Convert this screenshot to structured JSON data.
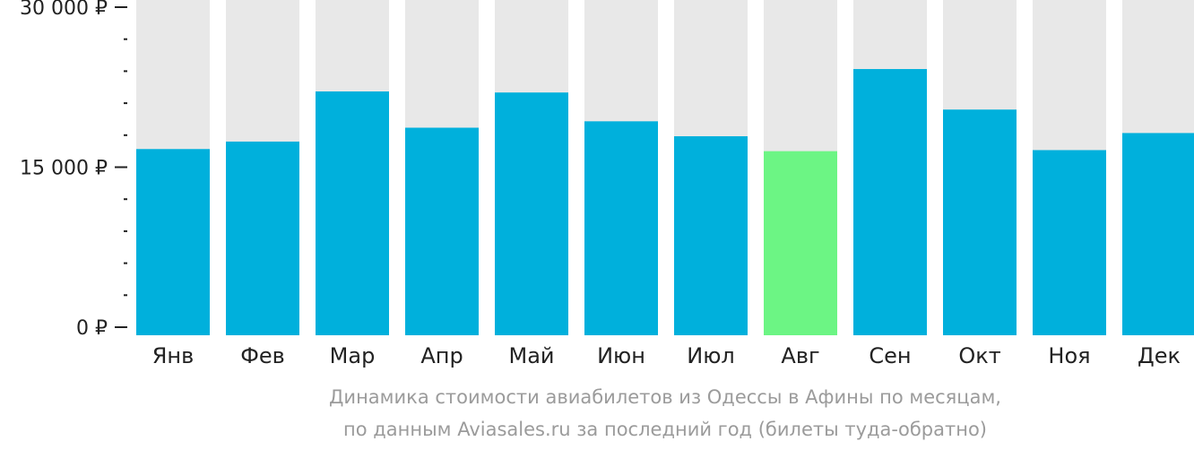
{
  "chart_data": {
    "type": "bar",
    "categories": [
      "Янв",
      "Фев",
      "Мар",
      "Апр",
      "Май",
      "Июн",
      "Июл",
      "Авг",
      "Сен",
      "Окт",
      "Ноя",
      "Дек"
    ],
    "series": [
      {
        "values": [
          16700,
          17400,
          22100,
          18700,
          22000,
          19300,
          17900,
          16500,
          24200,
          20400,
          16600,
          18200
        ]
      }
    ],
    "ylim": [
      0,
      30000
    ],
    "y_ticks": [
      {
        "value": 0,
        "label": "0 ₽"
      },
      {
        "value": 15000,
        "label": "15 000 ₽"
      },
      {
        "value": 30000,
        "label": "30 000 ₽"
      }
    ],
    "minor_tick_step": 3000,
    "highlight_index": 7,
    "grid": false,
    "title_lines": [
      "Динамика стоимости авиабилетов из Одессы в Афины по месяцам,",
      "по данным Aviasales.ru за последний год (билеты туда-обратно)"
    ]
  },
  "colors": {
    "bar": "#00b0dc",
    "bar_highlight": "#6cf584",
    "bar_background": "#e8e8e8",
    "axis": "#222222",
    "caption": "#9b9b9b"
  }
}
